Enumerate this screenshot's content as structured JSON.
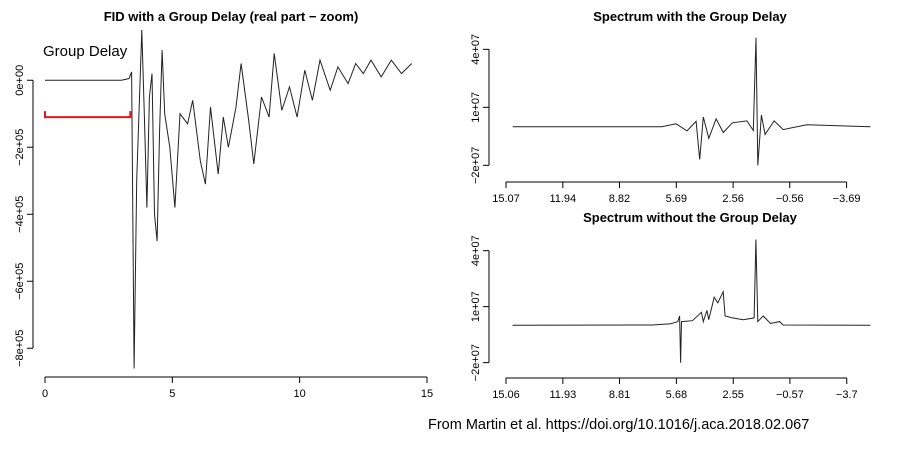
{
  "caption": "From Martin et al. https://doi.org/10.1016/j.aca.2018.02.067",
  "colors": {
    "trace": "#222222",
    "annotation": "#e8141c",
    "axis": "#000000"
  },
  "chart_data": [
    {
      "id": "fid",
      "type": "line",
      "title": "FID with a Group Delay (real part − zoom)",
      "xlabel": "",
      "ylabel": "",
      "xlim": [
        0,
        15
      ],
      "ylim": [
        -850000,
        150000
      ],
      "x_ticks": [
        0,
        5,
        10,
        15
      ],
      "x_tick_labels": [
        "0",
        "5",
        "10",
        "15"
      ],
      "y_ticks": [
        0,
        -200000,
        -400000,
        -600000,
        -800000
      ],
      "y_tick_labels": [
        "0e+00",
        "−2e+05",
        "−4e+05",
        "−6e+05",
        "−8e+05"
      ],
      "annotation": {
        "text": "Group Delay",
        "x_start": 0,
        "x_end": 3.35,
        "y": -110000
      },
      "series": [
        {
          "points": [
            [
              0,
              0
            ],
            [
              3.0,
              0
            ],
            [
              3.3,
              5000
            ],
            [
              3.4,
              25000
            ],
            [
              3.5,
              -860000
            ],
            [
              3.6,
              -300000
            ],
            [
              3.8,
              150000
            ],
            [
              3.9,
              -100000
            ],
            [
              4.0,
              -380000
            ],
            [
              4.1,
              -50000
            ],
            [
              4.2,
              20000
            ],
            [
              4.3,
              -400000
            ],
            [
              4.4,
              -480000
            ],
            [
              4.5,
              -150000
            ],
            [
              4.6,
              90000
            ],
            [
              4.7,
              -100000
            ],
            [
              4.9,
              -200000
            ],
            [
              5.1,
              -380000
            ],
            [
              5.3,
              -100000
            ],
            [
              5.6,
              -130000
            ],
            [
              5.8,
              -60000
            ],
            [
              6.1,
              -240000
            ],
            [
              6.3,
              -310000
            ],
            [
              6.5,
              -80000
            ],
            [
              6.8,
              -280000
            ],
            [
              7.0,
              -110000
            ],
            [
              7.2,
              -200000
            ],
            [
              7.5,
              -80000
            ],
            [
              7.7,
              50000
            ],
            [
              8.0,
              -120000
            ],
            [
              8.2,
              -250000
            ],
            [
              8.5,
              -50000
            ],
            [
              8.8,
              -110000
            ],
            [
              9.0,
              80000
            ],
            [
              9.3,
              -90000
            ],
            [
              9.6,
              -20000
            ],
            [
              9.9,
              -110000
            ],
            [
              10.2,
              30000
            ],
            [
              10.5,
              -60000
            ],
            [
              10.8,
              60000
            ],
            [
              11.2,
              -30000
            ],
            [
              11.5,
              40000
            ],
            [
              11.9,
              -10000
            ],
            [
              12.2,
              50000
            ],
            [
              12.5,
              20000
            ],
            [
              12.8,
              60000
            ],
            [
              13.2,
              10000
            ],
            [
              13.6,
              60000
            ],
            [
              14.0,
              20000
            ],
            [
              14.4,
              50000
            ]
          ]
        }
      ]
    },
    {
      "id": "spec-with-delay",
      "type": "line",
      "title": "Spectrum with the Group Delay",
      "xlabel": "",
      "ylabel": "",
      "xlim": [
        15.07,
        -5.2
      ],
      "ylim": [
        -25000000,
        50000000
      ],
      "x_ticks": [
        15.07,
        11.94,
        8.82,
        5.69,
        2.56,
        -0.56,
        -3.69
      ],
      "x_tick_labels": [
        "15.07",
        "11.94",
        "8.82",
        "5.69",
        "2.56",
        "−0.56",
        "−3.69"
      ],
      "y_ticks": [
        40000000,
        10000000,
        -20000000
      ],
      "y_tick_labels": [
        "4e+07",
        "1e+07",
        "−2e+07"
      ],
      "series": [
        {
          "points": [
            [
              14.7,
              0
            ],
            [
              6.5,
              0
            ],
            [
              5.7,
              1500000
            ],
            [
              5.1,
              -2200000
            ],
            [
              4.6,
              2800000
            ],
            [
              4.4,
              -17000000
            ],
            [
              4.2,
              5000000
            ],
            [
              3.9,
              -6000000
            ],
            [
              3.5,
              4000000
            ],
            [
              3.1,
              -3000000
            ],
            [
              2.6,
              2000000
            ],
            [
              1.8,
              3000000
            ],
            [
              1.45,
              -2000000
            ],
            [
              1.3,
              46000000
            ],
            [
              1.2,
              -20000000
            ],
            [
              1.0,
              6000000
            ],
            [
              0.8,
              -4000000
            ],
            [
              0.3,
              3000000
            ],
            [
              -0.2,
              -1500000
            ],
            [
              -1.5,
              1000000
            ],
            [
              -5.0,
              0
            ]
          ]
        }
      ]
    },
    {
      "id": "spec-without-delay",
      "type": "line",
      "title": "Spectrum without the Group Delay",
      "xlabel": "",
      "ylabel": "",
      "xlim": [
        15.06,
        -5.2
      ],
      "ylim": [
        -25000000,
        50000000
      ],
      "x_ticks": [
        15.06,
        11.93,
        8.81,
        5.68,
        2.55,
        -0.57,
        -3.7
      ],
      "x_tick_labels": [
        "15.06",
        "11.93",
        "8.81",
        "5.68",
        "2.55",
        "−0.57",
        "−3.7"
      ],
      "y_ticks": [
        40000000,
        10000000,
        -20000000
      ],
      "y_tick_labels": [
        "4e+07",
        "1e+07",
        "−2e+07"
      ],
      "series": [
        {
          "points": [
            [
              14.7,
              0
            ],
            [
              7.0,
              200000
            ],
            [
              6.0,
              800000
            ],
            [
              5.6,
              2000000
            ],
            [
              5.5,
              5000000
            ],
            [
              5.45,
              -20000000
            ],
            [
              5.4,
              2000000
            ],
            [
              4.8,
              2500000
            ],
            [
              4.3,
              7000000
            ],
            [
              4.2,
              2000000
            ],
            [
              4.0,
              8000000
            ],
            [
              3.9,
              3000000
            ],
            [
              3.6,
              15000000
            ],
            [
              3.4,
              12000000
            ],
            [
              3.1,
              18000000
            ],
            [
              3.0,
              5000000
            ],
            [
              2.6,
              4000000
            ],
            [
              2.0,
              3000000
            ],
            [
              1.4,
              4000000
            ],
            [
              1.3,
              46000000
            ],
            [
              1.2,
              2000000
            ],
            [
              0.9,
              5000000
            ],
            [
              0.5,
              1000000
            ],
            [
              0.0,
              2000000
            ],
            [
              -0.2,
              200000
            ],
            [
              -5.0,
              0
            ]
          ]
        }
      ]
    }
  ]
}
